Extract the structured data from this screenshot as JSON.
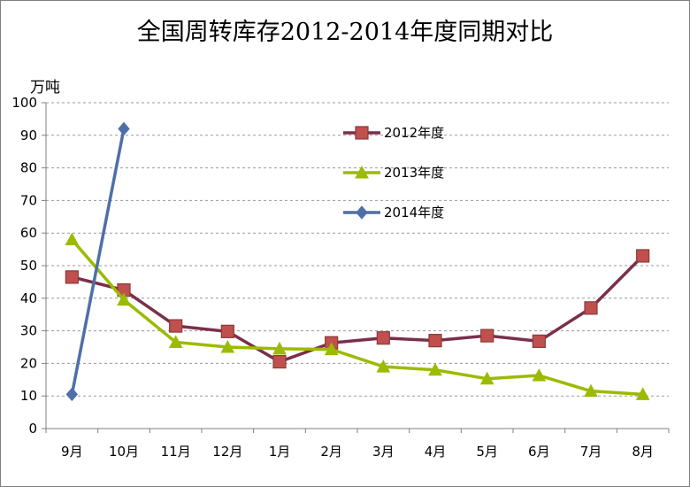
{
  "chart_data": {
    "type": "line",
    "title": "全国周转库存2012-2014年度同期对比",
    "ylabel": "万吨",
    "xlabel": "",
    "ylim": [
      0,
      100
    ],
    "yticks": [
      0,
      10,
      20,
      30,
      40,
      50,
      60,
      70,
      80,
      90,
      100
    ],
    "grid": "horizontal dashed",
    "legend_position": "top-right",
    "categories": [
      "9月",
      "10月",
      "11月",
      "12月",
      "1月",
      "2月",
      "3月",
      "4月",
      "5月",
      "6月",
      "7月",
      "8月"
    ],
    "series": [
      {
        "name": "2012年度",
        "color": "#7a2f4b",
        "marker_color": "#c0504d",
        "marker": "square",
        "values": [
          46.5,
          42.5,
          31.5,
          29.8,
          20.5,
          26.3,
          27.8,
          27.0,
          28.5,
          26.8,
          37.0,
          53.0
        ]
      },
      {
        "name": "2013年度",
        "color": "#9bbb00",
        "marker_color": "#9bbb00",
        "marker": "triangle",
        "values": [
          58.0,
          39.5,
          26.5,
          25.0,
          24.5,
          24.3,
          19.0,
          18.0,
          15.3,
          16.3,
          11.5,
          10.5
        ]
      },
      {
        "name": "2014年度",
        "color": "#4f6fa8",
        "marker_color": "#4f6fa8",
        "marker": "diamond",
        "values": [
          10.5,
          92.0,
          null,
          null,
          null,
          null,
          null,
          null,
          null,
          null,
          null,
          null
        ]
      }
    ]
  }
}
